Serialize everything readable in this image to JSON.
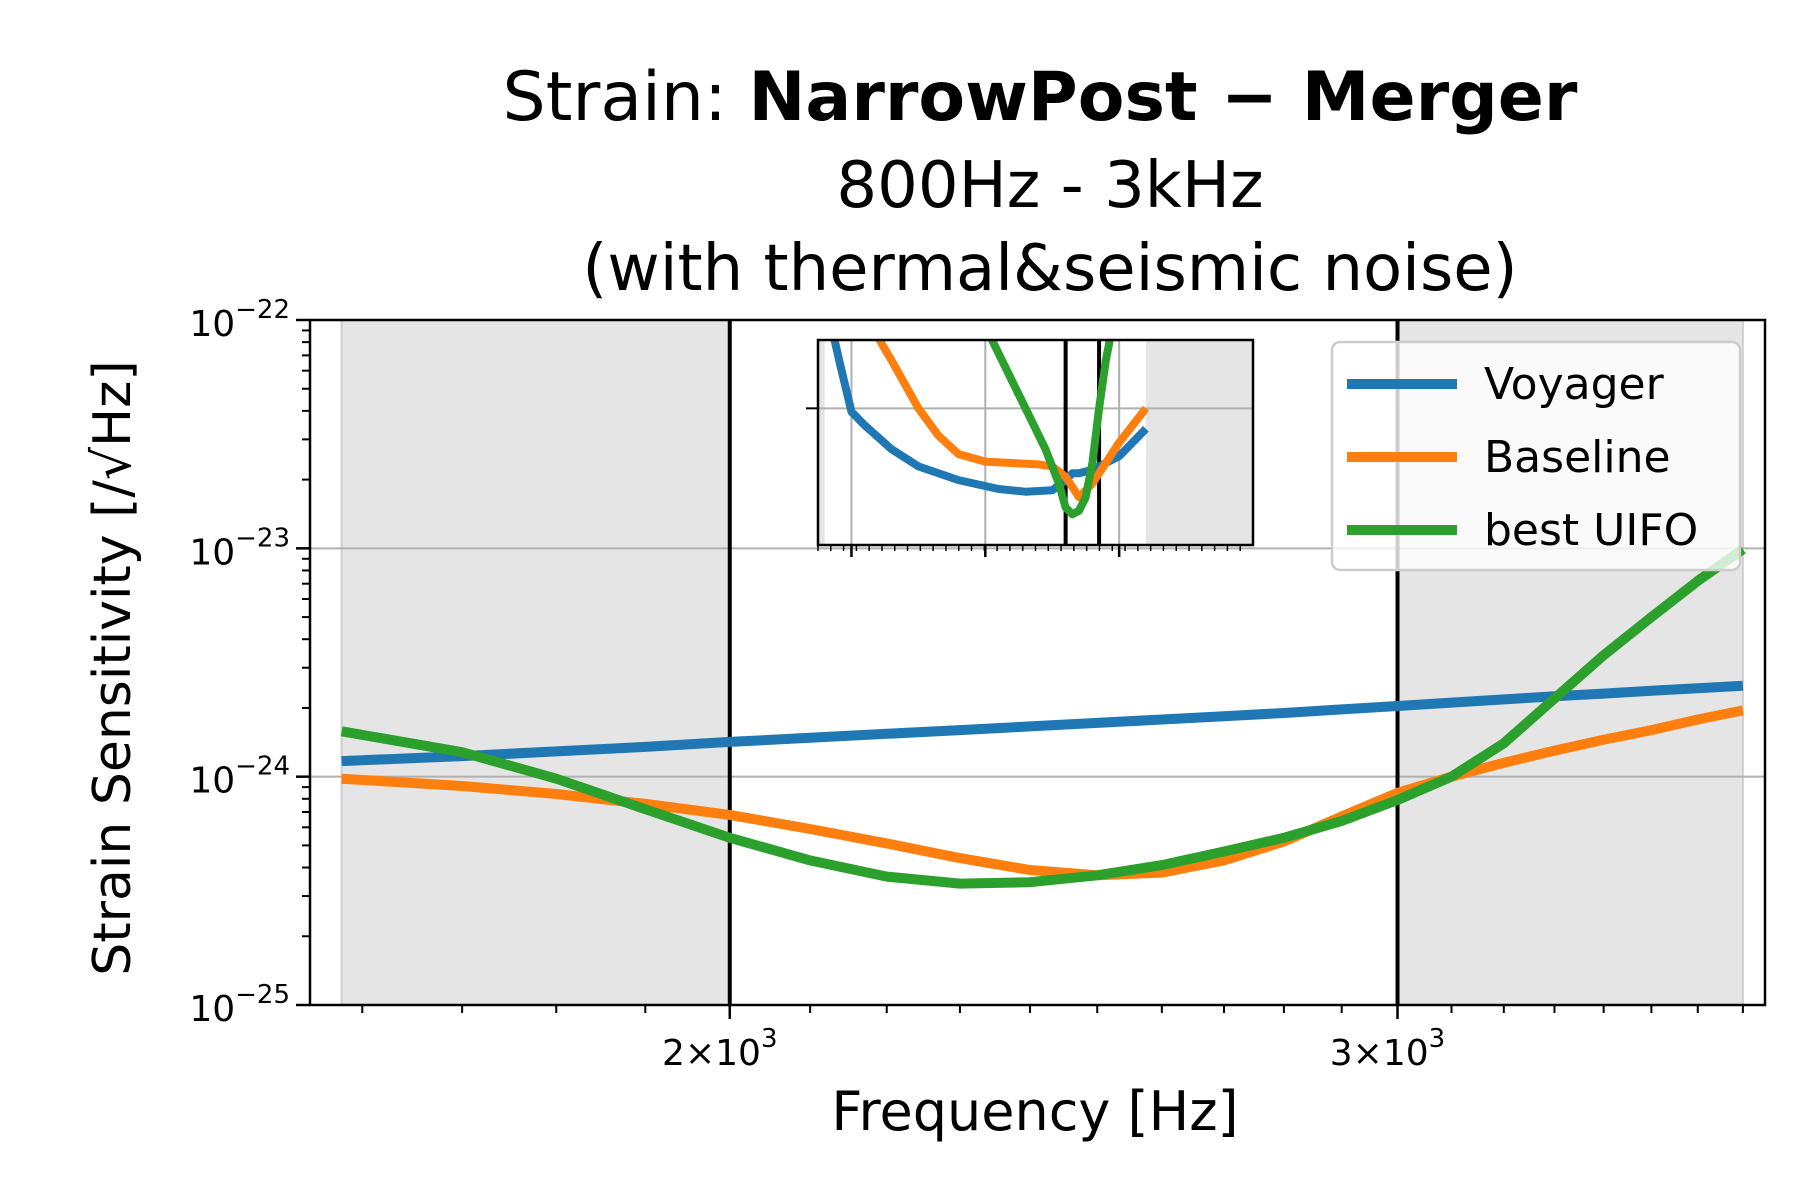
{
  "chart_data": {
    "type": "line",
    "title_prefix": "Strain: ",
    "title_bold": "NarrowPost − Merger",
    "subtitle_1": "800Hz - 3kHz",
    "subtitle_2": "(with thermal&seismic noise)",
    "xlabel": "Frequency [Hz]",
    "ylabel": "Strain Sensitivity [/√Hz]",
    "x_scale": "log",
    "y_scale": "log",
    "xlim": [
      1550,
      3750
    ],
    "ylim": [
      1e-25,
      1e-22
    ],
    "x_ticks": [
      {
        "value": 2000,
        "label": "2×10",
        "exp": "3"
      },
      {
        "value": 3000,
        "label": "3×10",
        "exp": "3"
      }
    ],
    "y_ticks": [
      {
        "value": 1e-22,
        "label": "10",
        "exp": "−22"
      },
      {
        "value": 1e-23,
        "label": "10",
        "exp": "−23"
      },
      {
        "value": 1e-24,
        "label": "10",
        "exp": "−24"
      },
      {
        "value": 1e-25,
        "label": "10",
        "exp": "−25"
      }
    ],
    "grid": "y-major",
    "shaded_regions": [
      [
        1580,
        2000
      ],
      [
        3000,
        3700
      ]
    ],
    "vertical_lines": [
      2000,
      3000
    ],
    "legend_position": "top-right",
    "series": [
      {
        "name": "Voyager",
        "color": "#1f77b4",
        "x": [
          1580,
          1700,
          1800,
          1900,
          2000,
          2100,
          2200,
          2300,
          2400,
          2500,
          2600,
          2700,
          2800,
          2900,
          3000,
          3100,
          3200,
          3300,
          3400,
          3500,
          3600,
          3700
        ],
        "y": [
          1.17e-24,
          1.23e-24,
          1.29e-24,
          1.35e-24,
          1.42e-24,
          1.48e-24,
          1.54e-24,
          1.6e-24,
          1.66e-24,
          1.72e-24,
          1.78e-24,
          1.84e-24,
          1.9e-24,
          1.97e-24,
          2.04e-24,
          2.11e-24,
          2.18e-24,
          2.25e-24,
          2.31e-24,
          2.38e-24,
          2.44e-24,
          2.5e-24
        ]
      },
      {
        "name": "Baseline",
        "color": "#ff7f0e",
        "x": [
          1580,
          1700,
          1800,
          1900,
          2000,
          2100,
          2200,
          2300,
          2400,
          2500,
          2600,
          2700,
          2800,
          2900,
          3000,
          3100,
          3200,
          3300,
          3400,
          3500,
          3600,
          3700
        ],
        "y": [
          9.8e-25,
          9.1e-25,
          8.4e-25,
          7.6e-25,
          6.8e-25,
          5.9e-25,
          5.1e-25,
          4.4e-25,
          3.9e-25,
          3.7e-25,
          3.8e-25,
          4.3e-25,
          5.2e-25,
          6.7e-25,
          8.5e-25,
          1e-24,
          1.15e-24,
          1.3e-24,
          1.45e-24,
          1.6e-24,
          1.78e-24,
          1.95e-24
        ]
      },
      {
        "name": "best UIFO",
        "color": "#2ca02c",
        "x": [
          1580,
          1700,
          1800,
          1900,
          2000,
          2100,
          2200,
          2300,
          2400,
          2500,
          2600,
          2700,
          2800,
          2900,
          3000,
          3100,
          3200,
          3300,
          3400,
          3500,
          3600,
          3700
        ],
        "y": [
          1.58e-24,
          1.28e-24,
          9.8e-25,
          7.2e-25,
          5.4e-25,
          4.3e-25,
          3.65e-25,
          3.4e-25,
          3.45e-25,
          3.7e-25,
          4.1e-25,
          4.7e-25,
          5.4e-25,
          6.4e-25,
          7.9e-25,
          1e-24,
          1.4e-24,
          2.2e-24,
          3.4e-24,
          5e-24,
          7.2e-24,
          9.9e-24
        ]
      }
    ],
    "inset": {
      "description_free": true,
      "xlim": [
        0.75,
        4.0
      ],
      "ylim": [
        0.0,
        3.0
      ],
      "shaded_regions": [
        [
          0.0,
          0.8
        ],
        [
          3.2,
          5.0
        ]
      ],
      "vertical_lines": [
        2.6,
        2.85
      ],
      "grid_x": [
        1,
        2,
        3
      ],
      "grid_y": [
        2
      ],
      "series": [
        {
          "name": "Voyager",
          "color": "#1f77b4",
          "x": [
            0.85,
            0.92,
            1.0,
            1.1,
            1.3,
            1.5,
            1.8,
            2.1,
            2.3,
            2.5,
            2.6,
            2.65,
            2.7,
            2.8,
            3.0,
            3.2
          ],
          "y": [
            3.2,
            2.6,
            1.95,
            1.75,
            1.4,
            1.15,
            0.95,
            0.82,
            0.78,
            0.8,
            0.95,
            1.05,
            1.05,
            1.1,
            1.3,
            1.7
          ]
        },
        {
          "name": "Baseline",
          "color": "#ff7f0e",
          "x": [
            1.15,
            1.3,
            1.5,
            1.65,
            1.8,
            2.0,
            2.2,
            2.4,
            2.5,
            2.6,
            2.65,
            2.7,
            2.8,
            3.0,
            3.2
          ],
          "y": [
            3.2,
            2.7,
            2.0,
            1.6,
            1.33,
            1.22,
            1.2,
            1.18,
            1.15,
            1.0,
            0.85,
            0.7,
            0.9,
            1.5,
            2.0
          ]
        },
        {
          "name": "best UIFO",
          "color": "#2ca02c",
          "x": [
            2.0,
            2.15,
            2.3,
            2.45,
            2.55,
            2.6,
            2.65,
            2.7,
            2.75,
            2.8,
            2.85,
            2.9,
            2.95
          ],
          "y": [
            3.2,
            2.6,
            2.0,
            1.4,
            0.9,
            0.55,
            0.45,
            0.5,
            0.7,
            1.2,
            2.0,
            2.7,
            3.2
          ]
        }
      ]
    }
  }
}
